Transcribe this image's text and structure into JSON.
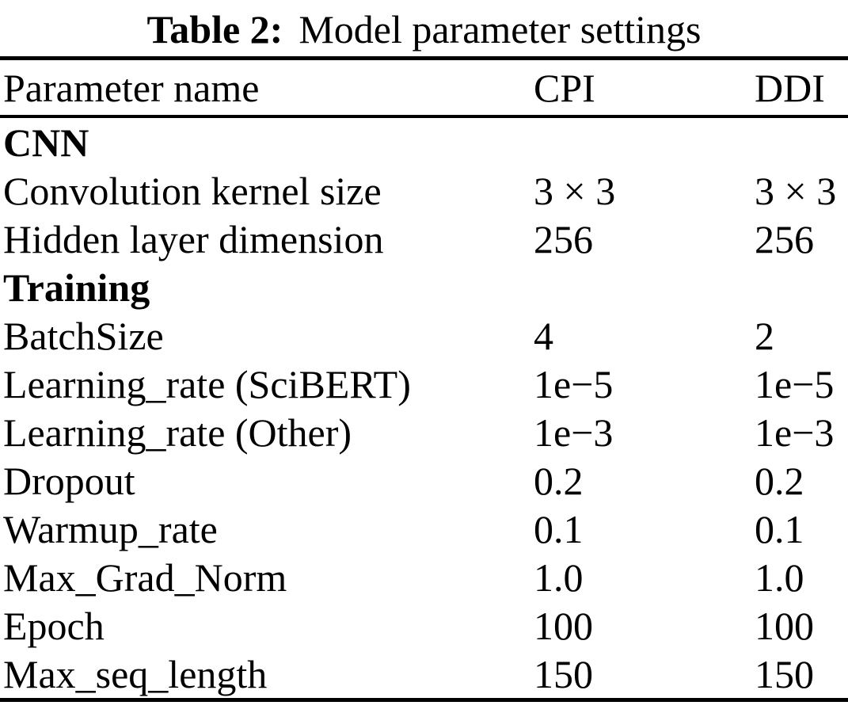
{
  "caption": {
    "prefix": "Table 2:",
    "text": "Model parameter settings"
  },
  "table": {
    "columns": [
      "Parameter name",
      "CPI",
      "DDI"
    ],
    "rows": [
      {
        "type": "section",
        "cells": [
          "CNN",
          "",
          ""
        ]
      },
      {
        "type": "data",
        "cells": [
          "Convolution kernel size",
          "3 × 3",
          "3 × 3"
        ]
      },
      {
        "type": "data",
        "cells": [
          "Hidden layer dimension",
          "256",
          "256"
        ]
      },
      {
        "type": "section",
        "cells": [
          "Training",
          "",
          ""
        ]
      },
      {
        "type": "data",
        "cells": [
          "BatchSize",
          "4",
          "2"
        ]
      },
      {
        "type": "data",
        "cells": [
          "Learning_rate (SciBERT)",
          "1e−5",
          "1e−5"
        ]
      },
      {
        "type": "data",
        "cells": [
          "Learning_rate (Other)",
          "1e−3",
          "1e−3"
        ]
      },
      {
        "type": "data",
        "cells": [
          "Dropout",
          "0.2",
          "0.2"
        ]
      },
      {
        "type": "data",
        "cells": [
          "Warmup_rate",
          "0.1",
          "0.1"
        ]
      },
      {
        "type": "data",
        "cells": [
          "Max_Grad_Norm",
          "1.0",
          "1.0"
        ]
      },
      {
        "type": "data",
        "cells": [
          "Epoch",
          "100",
          "100"
        ]
      },
      {
        "type": "data",
        "cells": [
          "Max_seq_length",
          "150",
          "150"
        ]
      }
    ]
  }
}
